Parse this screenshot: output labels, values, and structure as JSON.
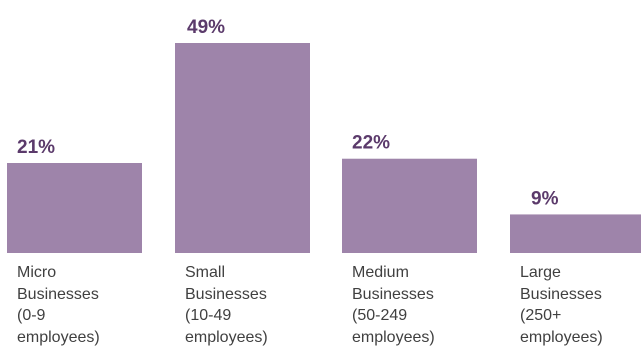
{
  "chart_data": {
    "type": "bar",
    "categories": [
      [
        "Micro",
        "Businesses",
        "(0-9",
        "employees)"
      ],
      [
        "Small",
        "Businesses",
        "(10-49",
        "employees)"
      ],
      [
        "Medium",
        "Businesses",
        "(50-249",
        "employees)"
      ],
      [
        "Large",
        "Businesses",
        "(250+",
        "employees)"
      ]
    ],
    "values": [
      21,
      49,
      22,
      9
    ],
    "data_labels": [
      "21%",
      "49%",
      "22%",
      "9%"
    ],
    "ylim": [
      0,
      49
    ],
    "bar_color": "#9e84aa",
    "label_color": "#5b3a6b",
    "grid": false,
    "legend": "none"
  }
}
